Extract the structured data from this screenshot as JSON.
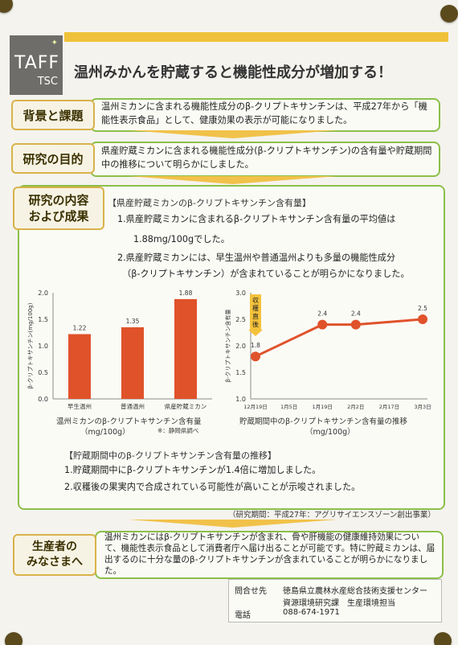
{
  "logo": {
    "line1": "TAFF",
    "line2": "TSC"
  },
  "title": "温州みかんを貯蔵すると機能性成分が増加する！",
  "sections": [
    {
      "label": "背景と課題",
      "text": "温州ミカンに含まれる機能性成分のβ-クリプトキサンチンは、平成27年から「機能性表示食品」として、健康効果の表示が可能になりました。"
    },
    {
      "label": "研究の目的",
      "text": "県産貯蔵ミカンに含まれる機能性成分(β-クリプトキサンチン)の含有量や貯蔵期間中の推移について明らかにしました。"
    }
  ],
  "content": {
    "label_line1": "研究の内容",
    "label_line2": "および成果",
    "head1": "【県産貯蔵ミカンのβ-クリプトキサンチン含有量】",
    "p1a": "1.県産貯蔵ミカンに含まれるβ-クリプトキサンチン含有量の平均値は",
    "p1b": "1.88mg/100gでした。",
    "p2a": "2.県産貯蔵ミカンには、早生温州や普通温州よりも多量の機能性成分",
    "p2b": "（β-クリプトキサンチン）が含まれていることが明らかになりました。",
    "head2": "【貯蔵期間中のβ-クリプトキサンチン含有量の推移】",
    "p3": "1.貯蔵期間中にβ-クリプトキサンチンが1.4倍に増加しました。",
    "p4": "2.収穫後の果実内で合成されている可能性が高いことが示唆されました。",
    "period": "（研究期間：平成27年：アグリサイエンスゾーン創出事業）"
  },
  "chart_data": [
    {
      "type": "bar",
      "categories": [
        "早生温州",
        "普通温州",
        "県産貯蔵ミカン"
      ],
      "values": [
        1.22,
        1.35,
        1.88
      ],
      "ylim": [
        0,
        2.0
      ],
      "yticks": [
        "0.0",
        "0.5",
        "1.0",
        "1.5",
        "2.0"
      ],
      "ylabel": "β-クリプトキサンチン(mg/100g)",
      "caption1": "温州ミカンのβ-クリプトキサンチン含有量",
      "caption2": "（mg/100g）",
      "note": "※：静岡県調べ",
      "color": "#e0522a"
    },
    {
      "type": "line",
      "x": [
        "12月19日",
        "1月5日",
        "1月19日",
        "2月2日",
        "2月17日",
        "3月3日"
      ],
      "points": [
        {
          "x": "12月19日",
          "y": 1.8
        },
        {
          "x": "1月19日",
          "y": 2.4
        },
        {
          "x": "2月2日",
          "y": 2.4
        },
        {
          "x": "3月3日",
          "y": 2.5
        }
      ],
      "ylim": [
        1.0,
        3.0
      ],
      "yticks": [
        "1.0",
        "1.5",
        "2.0",
        "2.5",
        "3.0"
      ],
      "ylabel": "β-クリプトキサンチン含有量",
      "harvest_label": "収穫直後",
      "caption1": "貯蔵期間中のβ-クリプトキサンチン含有量の推移",
      "caption2": "（mg/100g）",
      "color": "#e0522a"
    }
  ],
  "producers": {
    "label_line1": "生産者の",
    "label_line2": "みなさまへ",
    "text": "温州ミカンにはβ-クリプトキサンチンが含まれ、骨や肝機能の健康維持効果について、機能性表示食品として消費者庁へ届け出ることが可能です。特に貯蔵ミカンは、届出するのに十分な量のβ-クリプトキサンチンが含まれていることが明らかになりました。"
  },
  "contact": {
    "label": "問合せ先",
    "org1": "徳島県立農林水産総合技術支援センター",
    "org2": "資源環境研究課　生産環境担当",
    "tel_label": "電話",
    "tel": "088-674-1971"
  }
}
